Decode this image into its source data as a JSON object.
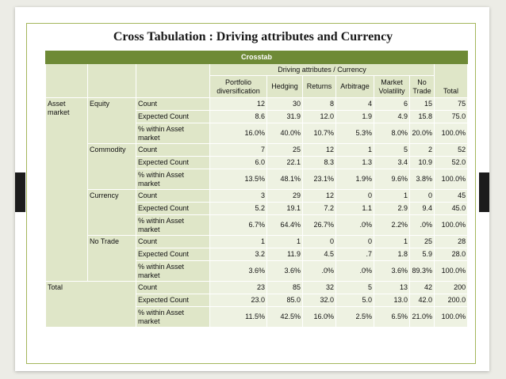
{
  "title": "Cross Tabulation : Driving attributes and Currency",
  "table": {
    "caption": "Crosstab",
    "group_header": "Driving attributes / Currency",
    "columns": [
      "Portfolio diversification",
      "Hedging",
      "Returns",
      "Arbitrage",
      "Market Volatility",
      "No Trade",
      "Total"
    ],
    "row_variable": "Asset market",
    "stat_labels": {
      "count": "Count",
      "expected": "Expected Count",
      "within": "% within Asset market"
    },
    "groups": [
      {
        "label": "Equity",
        "count": [
          "12",
          "30",
          "8",
          "4",
          "6",
          "15",
          "75"
        ],
        "expected": [
          "8.6",
          "31.9",
          "12.0",
          "1.9",
          "4.9",
          "15.8",
          "75.0"
        ],
        "within": [
          "16.0%",
          "40.0%",
          "10.7%",
          "5.3%",
          "8.0%",
          "20.0%",
          "100.0%"
        ]
      },
      {
        "label": "Commodity",
        "count": [
          "7",
          "25",
          "12",
          "1",
          "5",
          "2",
          "52"
        ],
        "expected": [
          "6.0",
          "22.1",
          "8.3",
          "1.3",
          "3.4",
          "10.9",
          "52.0"
        ],
        "within": [
          "13.5%",
          "48.1%",
          "23.1%",
          "1.9%",
          "9.6%",
          "3.8%",
          "100.0%"
        ]
      },
      {
        "label": "Currency",
        "count": [
          "3",
          "29",
          "12",
          "0",
          "1",
          "0",
          "45"
        ],
        "expected": [
          "5.2",
          "19.1",
          "7.2",
          "1.1",
          "2.9",
          "9.4",
          "45.0"
        ],
        "within": [
          "6.7%",
          "64.4%",
          "26.7%",
          ".0%",
          "2.2%",
          ".0%",
          "100.0%"
        ]
      },
      {
        "label": "No Trade",
        "count": [
          "1",
          "1",
          "0",
          "0",
          "1",
          "25",
          "28"
        ],
        "expected": [
          "3.2",
          "11.9",
          "4.5",
          ".7",
          "1.8",
          "5.9",
          "28.0"
        ],
        "within": [
          "3.6%",
          "3.6%",
          ".0%",
          ".0%",
          "3.6%",
          "89.3%",
          "100.0%"
        ]
      }
    ],
    "total": {
      "label": "Total",
      "count": [
        "23",
        "85",
        "32",
        "5",
        "13",
        "42",
        "200"
      ],
      "expected": [
        "23.0",
        "85.0",
        "32.0",
        "5.0",
        "13.0",
        "42.0",
        "200.0"
      ],
      "within": [
        "11.5%",
        "42.5%",
        "16.0%",
        "2.5%",
        "6.5%",
        "21.0%",
        "100.0%"
      ]
    }
  }
}
